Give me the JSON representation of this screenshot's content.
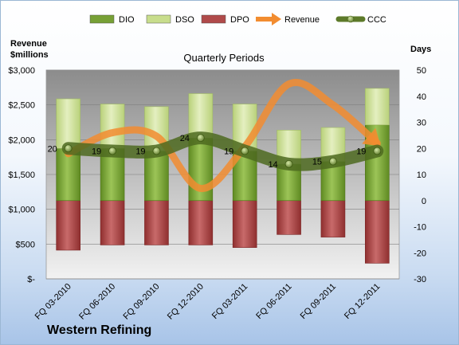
{
  "chart_data": {
    "type": "bar",
    "title": "Quarterly Periods",
    "company": "Western Refining",
    "ylabel_left": [
      "Revenue",
      "$millions"
    ],
    "ylabel_right": "Days",
    "categories": [
      "FQ 03-2010",
      "FQ 06-2010",
      "FQ 09-2010",
      "FQ 12-2010",
      "FQ 03-2011",
      "FQ 06-2011",
      "FQ 09-2011",
      "FQ 12-2011"
    ],
    "ylim_left": [
      0,
      3000
    ],
    "yticks_left": [
      "$-",
      "$500",
      "$1,000",
      "$1,500",
      "$2,000",
      "$2,500",
      "$3,000"
    ],
    "ylim_right": [
      -30,
      50
    ],
    "yticks_right": [
      "-30",
      "-20",
      "-10",
      "0",
      "10",
      "20",
      "30",
      "40",
      "50"
    ],
    "legend": [
      {
        "name": "DIO",
        "color": "#77a035",
        "kind": "bar"
      },
      {
        "name": "DSO",
        "color": "#c8dd8c",
        "kind": "bar"
      },
      {
        "name": "DPO",
        "color": "#b04a4a",
        "kind": "bar"
      },
      {
        "name": "Revenue",
        "color": "#f28c30",
        "kind": "arrow"
      },
      {
        "name": "CCC",
        "color": "#5d7a2a",
        "kind": "line"
      }
    ],
    "series": [
      {
        "name": "DIO",
        "values": [
          20,
          20,
          19,
          24,
          19,
          14,
          15,
          29
        ]
      },
      {
        "name": "DSO",
        "values": [
          19,
          17,
          17,
          17,
          18,
          13,
          13,
          14
        ]
      },
      {
        "name": "DPO",
        "values": [
          -19,
          -17,
          -17,
          -17,
          -18,
          -13,
          -14,
          -24
        ]
      },
      {
        "name": "Revenue",
        "values": [
          1800,
          2100,
          2050,
          1300,
          1900,
          2800,
          2500,
          1950
        ]
      },
      {
        "name": "CCC",
        "values": [
          20,
          19,
          19,
          24,
          19,
          14,
          15,
          19
        ]
      }
    ],
    "ccc_labels": [
      "20",
      "19",
      "19",
      "24",
      "19",
      "14",
      "15",
      "19"
    ]
  }
}
